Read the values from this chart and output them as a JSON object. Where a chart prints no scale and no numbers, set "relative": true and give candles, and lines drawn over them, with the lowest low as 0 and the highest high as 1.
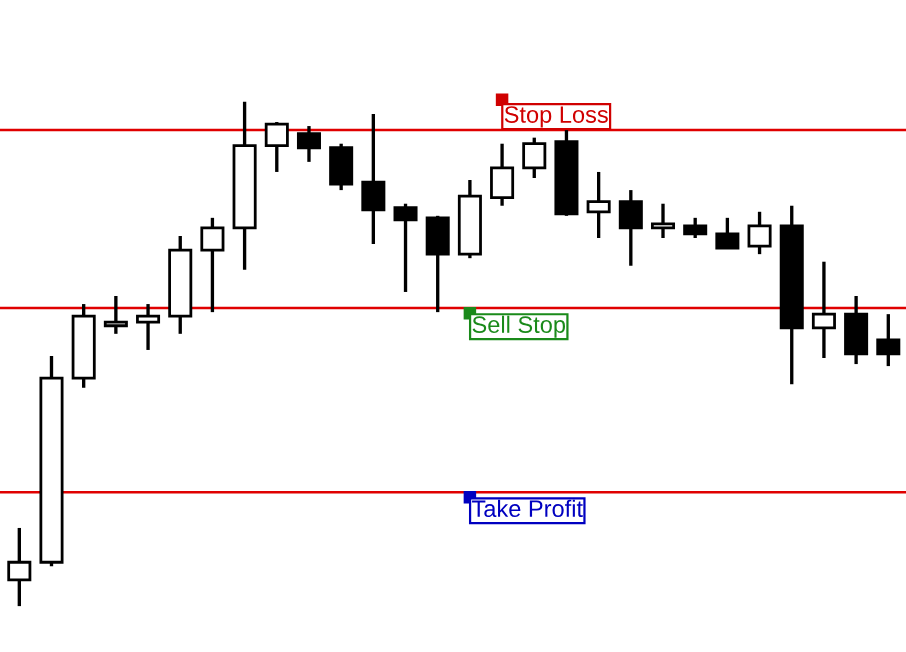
{
  "chart_data": {
    "type": "candlestick",
    "relative": true,
    "categories": [
      null,
      null,
      null,
      null,
      null,
      null,
      null,
      null,
      null,
      null,
      null,
      null,
      null,
      null,
      null,
      null,
      null,
      null,
      null,
      null,
      null,
      null,
      null,
      null,
      null,
      null,
      null,
      null
    ],
    "ohlc": [
      [
        0.052,
        0.155,
        0,
        0.087
      ],
      [
        0.087,
        0.496,
        0.079,
        0.452
      ],
      [
        0.452,
        0.599,
        0.433,
        0.575
      ],
      [
        0.556,
        0.615,
        0.54,
        0.563
      ],
      [
        0.563,
        0.599,
        0.508,
        0.575
      ],
      [
        0.575,
        0.734,
        0.54,
        0.706
      ],
      [
        0.706,
        0.77,
        0.583,
        0.75
      ],
      [
        0.75,
        1.0,
        0.667,
        0.913
      ],
      [
        0.913,
        0.96,
        0.861,
        0.956
      ],
      [
        0.937,
        0.952,
        0.881,
        0.909
      ],
      [
        0.909,
        0.917,
        0.825,
        0.837
      ],
      [
        0.841,
        0.976,
        0.718,
        0.786
      ],
      [
        0.79,
        0.798,
        0.623,
        0.766
      ],
      [
        0.77,
        0.774,
        0.583,
        0.698
      ],
      [
        0.698,
        0.845,
        0.69,
        0.813
      ],
      [
        0.81,
        0.917,
        0.794,
        0.869
      ],
      [
        0.869,
        0.929,
        0.849,
        0.917
      ],
      [
        0.921,
        0.944,
        0.774,
        0.778
      ],
      [
        0.782,
        0.861,
        0.73,
        0.802
      ],
      [
        0.802,
        0.825,
        0.675,
        0.75
      ],
      [
        0.75,
        0.798,
        0.73,
        0.758
      ],
      [
        0.754,
        0.77,
        0.73,
        0.738
      ],
      [
        0.738,
        0.77,
        0.71,
        0.71
      ],
      [
        0.714,
        0.782,
        0.698,
        0.754
      ],
      [
        0.754,
        0.794,
        0.44,
        0.552
      ],
      [
        0.552,
        0.683,
        0.492,
        0.579
      ],
      [
        0.579,
        0.615,
        0.48,
        0.5
      ],
      [
        0.528,
        0.579,
        0.476,
        0.5
      ]
    ],
    "ref_lines": [
      {
        "axis": "y",
        "value": 0.944,
        "label": "Stop Loss",
        "color": "#e00000"
      },
      {
        "axis": "y",
        "value": 0.591,
        "label": "Sell Stop",
        "color": "#e00000"
      },
      {
        "axis": "y",
        "value": 0.226,
        "label": "Take Profit",
        "color": "#e00000"
      }
    ],
    "legend": false
  }
}
